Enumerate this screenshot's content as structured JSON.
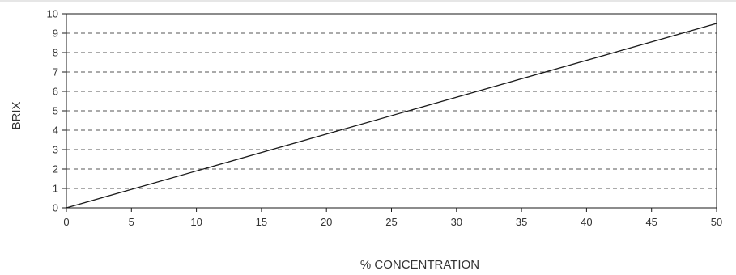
{
  "chart_data": {
    "type": "line",
    "title": "",
    "xlabel": "% CONCENTRATION",
    "ylabel": "BRIX",
    "xlim": [
      0,
      50
    ],
    "ylim": [
      0,
      10
    ],
    "x_ticks": [
      0,
      5,
      10,
      15,
      20,
      25,
      30,
      35,
      40,
      45,
      50
    ],
    "y_ticks": [
      0,
      1,
      2,
      3,
      4,
      5,
      6,
      7,
      8,
      9,
      10
    ],
    "grid": "horizontal-dashed",
    "series": [
      {
        "x": [
          0,
          50
        ],
        "y": [
          0,
          9.5
        ],
        "color": "#1a1a1a"
      }
    ]
  }
}
